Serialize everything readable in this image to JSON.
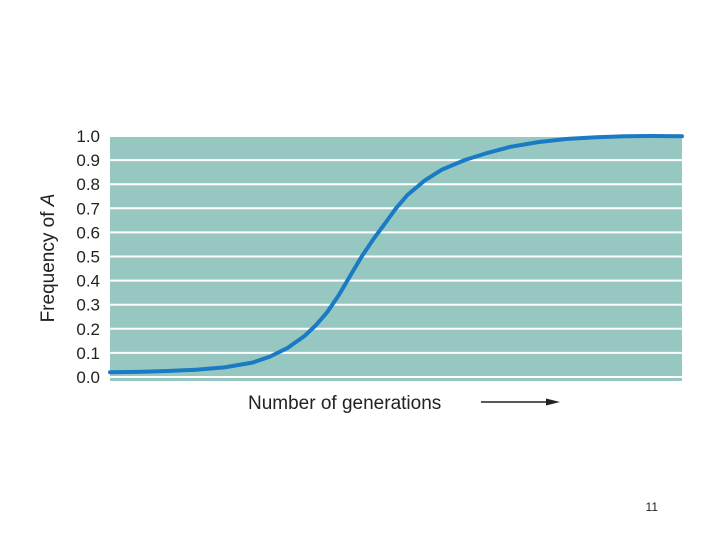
{
  "slide": {
    "page_number": "11"
  },
  "chart_data": {
    "type": "line",
    "title": "",
    "xlabel": "Number of generations",
    "ylabel_prefix": "Frequency of ",
    "ylabel_symbol": "A",
    "ylim": [
      0.0,
      1.0
    ],
    "xlim": [
      0,
      100
    ],
    "yticks": [
      "0.0",
      "0.1",
      "0.2",
      "0.3",
      "0.4",
      "0.5",
      "0.6",
      "0.7",
      "0.8",
      "0.9",
      "1.0"
    ],
    "grid": true,
    "x_tick_labels": false,
    "background_color": "#97c7c1",
    "grid_color": "#ffffff",
    "line_color": "#1a7ac4",
    "series": [
      {
        "x": [
          0,
          5,
          10,
          15,
          20,
          25,
          28,
          31,
          34,
          36,
          38,
          40,
          42,
          44,
          46,
          48,
          50,
          52,
          55,
          58,
          62,
          66,
          70,
          75,
          80,
          85,
          90,
          95,
          100
        ],
        "values": [
          0.02,
          0.021,
          0.025,
          0.03,
          0.04,
          0.06,
          0.085,
          0.12,
          0.17,
          0.215,
          0.27,
          0.34,
          0.42,
          0.5,
          0.57,
          0.635,
          0.7,
          0.755,
          0.815,
          0.86,
          0.9,
          0.93,
          0.955,
          0.975,
          0.988,
          0.995,
          0.999,
          1.0,
          0.999
        ]
      }
    ]
  }
}
